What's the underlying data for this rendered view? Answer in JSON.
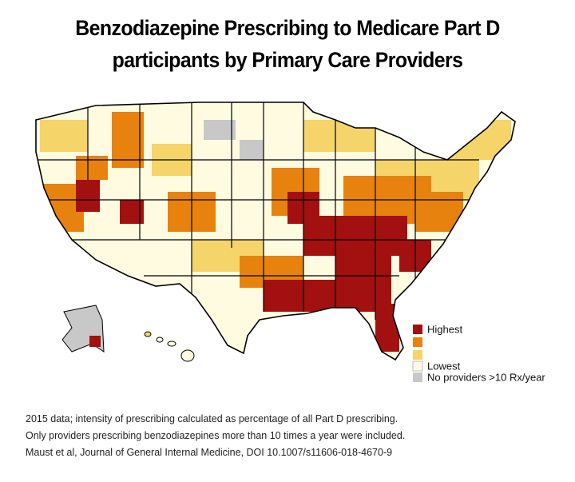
{
  "header": {
    "title_lines": [
      "Benzodiazepine Prescribing to Medicare Part D",
      "participants by Primary Care Providers"
    ]
  },
  "legend": [
    "Highest",
    "Lowest",
    "No providers >10 Rx/year"
  ],
  "notes": [
    "2015 data; intensity of prescribing calculated as percentage of all Part D prescribing.",
    "Only providers prescribing benzodiazepines more than 10 times a year were included.",
    "Maust et al, Journal of General Internal Medicine, DOI 10.1007/s11606-018-4670-9"
  ]
}
